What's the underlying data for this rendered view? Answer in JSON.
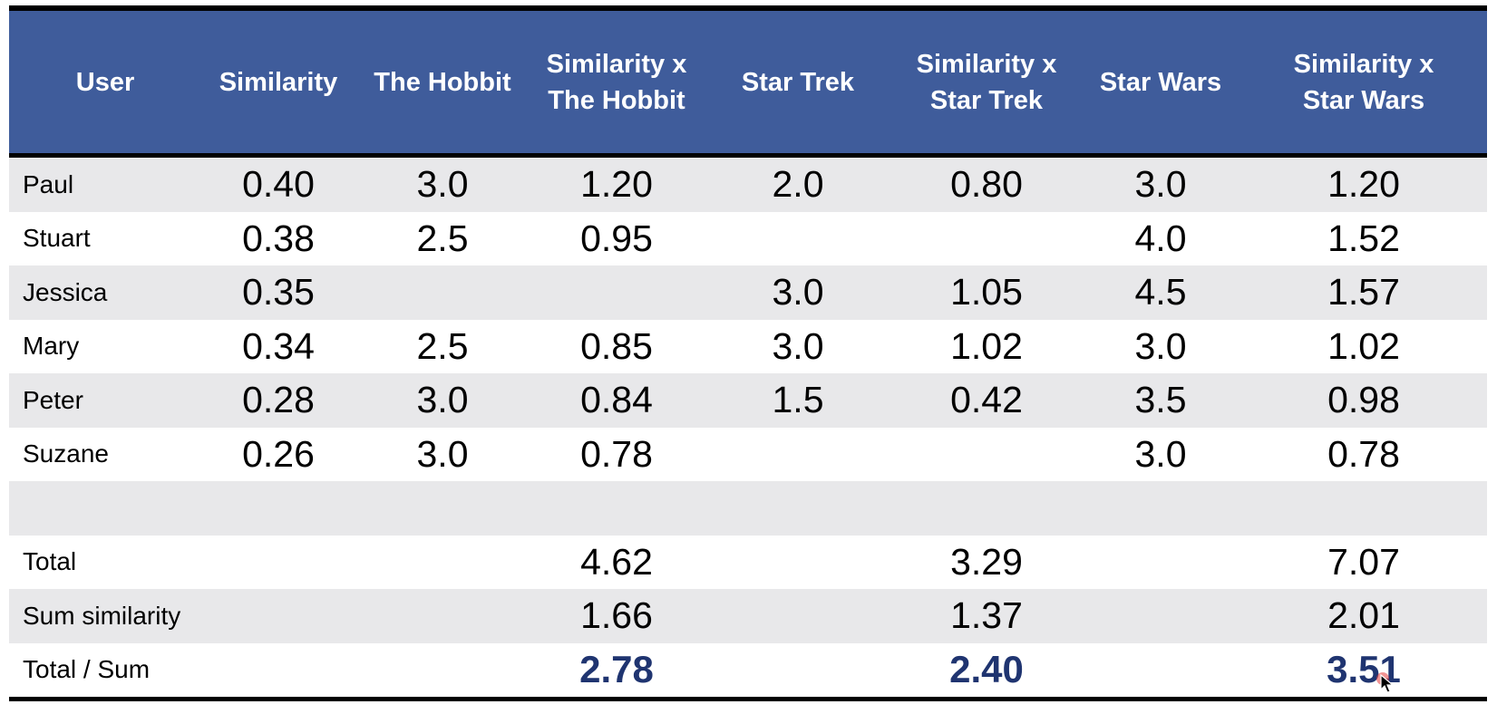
{
  "table": {
    "headers": [
      {
        "line1": "User",
        "line2": ""
      },
      {
        "line1": "Similarity",
        "line2": ""
      },
      {
        "line1": "The Hobbit",
        "line2": ""
      },
      {
        "line1": "Similarity x",
        "line2": "The Hobbit"
      },
      {
        "line1": "Star Trek",
        "line2": ""
      },
      {
        "line1": "Similarity x",
        "line2": "Star Trek"
      },
      {
        "line1": "Star Wars",
        "line2": ""
      },
      {
        "line1": "Similarity x",
        "line2": "Star Wars"
      }
    ],
    "rows": [
      {
        "user": "Paul",
        "similarity": "0.40",
        "hobbit": "3.0",
        "sim_hobbit": "1.20",
        "trek": "2.0",
        "sim_trek": "0.80",
        "wars": "3.0",
        "sim_wars": "1.20"
      },
      {
        "user": "Stuart",
        "similarity": "0.38",
        "hobbit": "2.5",
        "sim_hobbit": "0.95",
        "trek": "",
        "sim_trek": "",
        "wars": "4.0",
        "sim_wars": "1.52"
      },
      {
        "user": "Jessica",
        "similarity": "0.35",
        "hobbit": "",
        "sim_hobbit": "",
        "trek": "3.0",
        "sim_trek": "1.05",
        "wars": "4.5",
        "sim_wars": "1.57"
      },
      {
        "user": "Mary",
        "similarity": "0.34",
        "hobbit": "2.5",
        "sim_hobbit": "0.85",
        "trek": "3.0",
        "sim_trek": "1.02",
        "wars": "3.0",
        "sim_wars": "1.02"
      },
      {
        "user": "Peter",
        "similarity": "0.28",
        "hobbit": "3.0",
        "sim_hobbit": "0.84",
        "trek": "1.5",
        "sim_trek": "0.42",
        "wars": "3.5",
        "sim_wars": "0.98"
      },
      {
        "user": "Suzane",
        "similarity": "0.26",
        "hobbit": "3.0",
        "sim_hobbit": "0.78",
        "trek": "",
        "sim_trek": "",
        "wars": "3.0",
        "sim_wars": "0.78"
      }
    ],
    "summary": [
      {
        "label": "Total",
        "hobbit": "4.62",
        "trek": "3.29",
        "wars": "7.07",
        "bold": false
      },
      {
        "label": "Sum similarity",
        "hobbit": "1.66",
        "trek": "1.37",
        "wars": "2.01",
        "bold": false
      },
      {
        "label": "Total / Sum",
        "hobbit": "2.78",
        "trek": "2.40",
        "wars": "3.51",
        "bold": true
      }
    ]
  },
  "colors": {
    "header_bg": "#3f5c9b",
    "header_text": "#ffffff",
    "row_shade": "#e8e8ea",
    "result_text": "#1f3470"
  }
}
